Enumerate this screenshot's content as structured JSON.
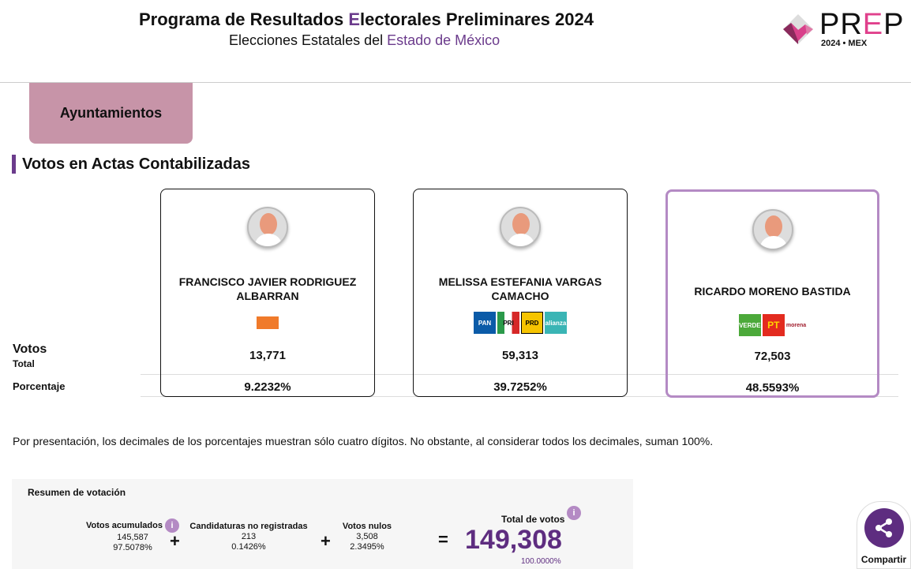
{
  "header": {
    "title_a": "Programa de Resultados ",
    "title_e": "E",
    "title_b": "lectorales Preliminares 2024",
    "subtitle_a": "Elecciones Estatales del ",
    "subtitle_b": "Estado de México",
    "logo_text": "PREP",
    "logo_sub": "2024 • MEX"
  },
  "tab": {
    "label": "Ayuntamientos"
  },
  "section": {
    "title": "Votos en Actas Contabilizadas"
  },
  "row_labels": {
    "votos": "Votos",
    "total": "Total",
    "porcentaje": "Porcentaje"
  },
  "candidates": [
    {
      "name": "FRANCISCO JAVIER RODRIGUEZ ALBARRAN",
      "parties": [
        "MC"
      ],
      "votes": "13,771",
      "pct": "9.2232%"
    },
    {
      "name": "MELISSA ESTEFANIA VARGAS CAMACHO",
      "parties": [
        "PAN",
        "PRI",
        "PRD",
        "alianza"
      ],
      "votes": "59,313",
      "pct": "39.7252%"
    },
    {
      "name": "RICARDO MORENO BASTIDA",
      "parties": [
        "VERDE",
        "PT",
        "morena"
      ],
      "votes": "72,503",
      "pct": "48.5593%",
      "selected": true
    }
  ],
  "note": "Por presentación, los decimales de los porcentajes muestran sólo cuatro dígitos. No obstante, al considerar todos los decimales, suman 100%.",
  "summary": {
    "title": "Resumen de votación",
    "acumulados": {
      "label": "Votos acumulados",
      "value": "145,587",
      "pct": "97.5078%"
    },
    "no_registradas": {
      "label": "Candidaturas no registradas",
      "value": "213",
      "pct": "0.1426%"
    },
    "nulos": {
      "label": "Votos nulos",
      "value": "3,508",
      "pct": "2.3495%"
    },
    "total": {
      "label": "Total de votos",
      "value": "149,308",
      "pct": "100.0000%"
    },
    "plus": "+",
    "equals": "=",
    "info": "i"
  },
  "share": {
    "label": "Compartir"
  },
  "colors": {
    "accent": "#6b3b8c",
    "tab": "#c794a8",
    "selected_border": "#b48ac4"
  }
}
